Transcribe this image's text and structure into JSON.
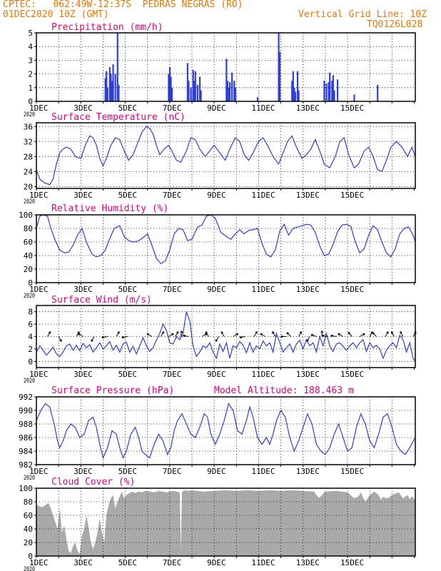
{
  "header": {
    "line1": "CPTEC:   062:49W-12:37S  PEDRAS NEGRAS (RO)",
    "line2_left": "01DEC2020 10Z (GMT)",
    "line2_right": "Vertical Grid Line: 10Z",
    "line3_right": "TQ0126L028"
  },
  "colors": {
    "header": "#e8780a",
    "title": "#e0007a",
    "line": "#2f3fd8",
    "bar": "#2f3fd8",
    "cloud": "#a9a9a9",
    "grid": "#000000",
    "wind_arrow": "#000000"
  },
  "x_tick_labels": [
    "1DEC",
    "3DEC",
    "5DEC",
    "7DEC",
    "9DEC",
    "11DEC",
    "13DEC",
    "15DEC"
  ],
  "x_first_tick_year_fragment": "2020",
  "chart_data": [
    {
      "type": "bar",
      "title": "Precipitation (mm/h)",
      "x_unit": "days since 01DEC2020 00Z",
      "ylim": [
        0,
        5
      ],
      "yticks": [
        0,
        1,
        2,
        3,
        4,
        5
      ],
      "x": [
        3.1,
        3.15,
        3.2,
        3.3,
        3.35,
        3.4,
        3.45,
        3.55,
        3.65,
        3.7,
        5.95,
        6.0,
        6.05,
        6.1,
        6.8,
        6.85,
        6.95,
        7.05,
        7.1,
        7.15,
        7.25,
        7.35,
        7.4,
        8.55,
        8.6,
        8.65,
        8.7,
        8.8,
        8.9,
        8.95,
        9.95,
        10.9,
        10.95,
        11.5,
        11.55,
        11.6,
        11.65,
        11.75,
        11.8,
        12.95,
        13.05,
        13.15,
        13.2,
        13.3,
        13.35,
        13.4,
        13.55,
        14.3,
        15.35
      ],
      "values": [
        1.7,
        2.2,
        1.0,
        2.5,
        2.0,
        1.5,
        2.7,
        2.0,
        5.0,
        1.2,
        2.0,
        2.5,
        1.8,
        1.0,
        2.8,
        1.5,
        1.0,
        2.3,
        1.5,
        2.2,
        1.2,
        1.8,
        0.8,
        3.1,
        1.5,
        1.0,
        1.4,
        2.1,
        1.5,
        1.0,
        0.3,
        5.0,
        3.6,
        1.5,
        2.2,
        1.0,
        0.7,
        2.2,
        0.8,
        1.5,
        1.3,
        1.4,
        2.1,
        1.5,
        1.9,
        0.8,
        1.6,
        0.5,
        1.2
      ]
    },
    {
      "type": "line",
      "title": "Surface Temperature (nC)",
      "x_unit": "days since 01DEC2020 00Z",
      "ylim": [
        19.5,
        37
      ],
      "yticks": [
        20,
        24,
        28,
        32,
        36
      ],
      "x": [
        0.0,
        0.15,
        0.35,
        0.6,
        0.75,
        0.9,
        1.05,
        1.2,
        1.35,
        1.55,
        1.75,
        2.0,
        2.2,
        2.4,
        2.55,
        2.7,
        2.85,
        3.0,
        3.15,
        3.35,
        3.55,
        3.75,
        3.95,
        4.15,
        4.35,
        4.55,
        4.75,
        4.95,
        5.1,
        5.25,
        5.4,
        5.55,
        5.75,
        5.95,
        6.1,
        6.3,
        6.5,
        6.75,
        6.95,
        7.15,
        7.35,
        7.6,
        7.8,
        8.0,
        8.25,
        8.5,
        8.7,
        8.95,
        9.15,
        9.35,
        9.55,
        9.75,
        10.0,
        10.2,
        10.4,
        10.65,
        10.9,
        11.1,
        11.3,
        11.5,
        11.7,
        11.95,
        12.15,
        12.35,
        12.55,
        12.75,
        12.95,
        13.2,
        13.45,
        13.65,
        13.85,
        14.05,
        14.3,
        14.5,
        14.75,
        14.95,
        15.15,
        15.35,
        15.55,
        15.75,
        15.95,
        16.2,
        16.45,
        16.7,
        16.9,
        17.05
      ],
      "values": [
        24.5,
        22.0,
        21.0,
        20.5,
        22.0,
        26.0,
        29.0,
        30.0,
        30.5,
        30.0,
        28.0,
        27.5,
        31.0,
        33.5,
        33.0,
        31.0,
        27.5,
        25.5,
        27.5,
        31.0,
        33.0,
        32.5,
        29.5,
        27.0,
        28.5,
        31.5,
        34.5,
        36.0,
        35.5,
        34.0,
        31.0,
        28.5,
        30.0,
        31.0,
        29.5,
        27.0,
        26.5,
        29.5,
        33.0,
        32.5,
        30.0,
        28.0,
        29.5,
        31.0,
        29.0,
        27.0,
        30.0,
        33.0,
        32.0,
        28.5,
        27.0,
        29.0,
        32.0,
        33.0,
        31.0,
        28.0,
        26.0,
        29.0,
        32.0,
        33.5,
        30.5,
        27.5,
        28.5,
        30.0,
        32.5,
        29.5,
        26.0,
        25.0,
        28.0,
        32.0,
        33.0,
        28.5,
        25.0,
        26.0,
        29.5,
        30.5,
        28.0,
        24.5,
        24.0,
        27.0,
        30.5,
        32.0,
        30.5,
        28.0,
        30.5,
        28.0
      ]
    },
    {
      "type": "line",
      "title": "Relative Humidity (%)",
      "x_unit": "days since 01DEC2020 00Z",
      "ylim": [
        0,
        100
      ],
      "yticks": [
        0,
        20,
        40,
        60,
        80,
        100
      ],
      "x": [
        0.0,
        0.15,
        0.3,
        0.5,
        0.65,
        0.85,
        1.05,
        1.25,
        1.45,
        1.65,
        1.85,
        2.05,
        2.25,
        2.5,
        2.7,
        2.9,
        3.1,
        3.3,
        3.5,
        3.75,
        3.95,
        4.15,
        4.35,
        4.55,
        4.75,
        5.0,
        5.2,
        5.4,
        5.6,
        5.8,
        6.0,
        6.2,
        6.4,
        6.6,
        6.8,
        7.0,
        7.25,
        7.45,
        7.65,
        7.85,
        8.05,
        8.3,
        8.55,
        8.75,
        8.95,
        9.15,
        9.35,
        9.55,
        9.75,
        9.95,
        10.15,
        10.35,
        10.55,
        10.75,
        10.95,
        11.15,
        11.35,
        11.55,
        11.75,
        11.95,
        12.15,
        12.35,
        12.55,
        12.75,
        12.95,
        13.15,
        13.35,
        13.55,
        13.75,
        13.95,
        14.15,
        14.35,
        14.55,
        14.75,
        14.95,
        15.15,
        15.35,
        15.55,
        15.75,
        15.95,
        16.15,
        16.35,
        16.55,
        16.75,
        16.95,
        17.05
      ],
      "values": [
        80,
        98,
        100,
        98,
        80,
        62,
        48,
        44,
        45,
        55,
        70,
        80,
        60,
        42,
        38,
        40,
        48,
        65,
        80,
        84,
        68,
        62,
        60,
        61,
        65,
        72,
        55,
        36,
        28,
        32,
        48,
        72,
        80,
        78,
        62,
        64,
        82,
        85,
        98,
        100,
        95,
        74,
        68,
        64,
        72,
        78,
        72,
        77,
        78,
        80,
        58,
        42,
        38,
        48,
        76,
        86,
        70,
        80,
        82,
        84,
        86,
        85,
        74,
        54,
        40,
        42,
        56,
        75,
        85,
        86,
        83,
        60,
        44,
        50,
        70,
        84,
        78,
        60,
        44,
        38,
        50,
        72,
        80,
        82,
        70,
        60
      ]
    },
    {
      "type": "line",
      "title": "Surface Wind (m/s)",
      "x_unit": "days since 01DEC2020 00Z",
      "ylim": [
        -1,
        9
      ],
      "yticks": [
        0,
        2,
        4,
        6,
        8
      ],
      "x": [
        0.0,
        0.15,
        0.3,
        0.45,
        0.6,
        0.75,
        0.9,
        1.05,
        1.2,
        1.35,
        1.5,
        1.65,
        1.8,
        1.95,
        2.1,
        2.25,
        2.4,
        2.55,
        2.7,
        2.85,
        3.0,
        3.15,
        3.3,
        3.45,
        3.6,
        3.75,
        3.9,
        4.05,
        4.2,
        4.35,
        4.5,
        4.65,
        4.8,
        4.95,
        5.1,
        5.25,
        5.4,
        5.55,
        5.7,
        5.85,
        6.0,
        6.15,
        6.3,
        6.45,
        6.6,
        6.75,
        6.9,
        7.05,
        7.2,
        7.35,
        7.5,
        7.65,
        7.8,
        7.95,
        8.1,
        8.25,
        8.4,
        8.55,
        8.7,
        8.85,
        9.0,
        9.15,
        9.3,
        9.45,
        9.6,
        9.75,
        9.9,
        10.05,
        10.2,
        10.35,
        10.5,
        10.65,
        10.8,
        10.95,
        11.1,
        11.25,
        11.4,
        11.55,
        11.7,
        11.85,
        12.0,
        12.15,
        12.3,
        12.45,
        12.6,
        12.75,
        12.9,
        13.05,
        13.2,
        13.35,
        13.5,
        13.65,
        13.8,
        13.95,
        14.1,
        14.25,
        14.4,
        14.55,
        14.7,
        14.85,
        15.0,
        15.15,
        15.3,
        15.45,
        15.6,
        15.75,
        15.9,
        16.05,
        16.2,
        16.35,
        16.5,
        16.65,
        16.8,
        16.95,
        17.05
      ],
      "values": [
        1.5,
        2.5,
        1.8,
        1.0,
        1.6,
        2.3,
        1.2,
        0.8,
        1.5,
        2.5,
        2.8,
        1.8,
        2.6,
        1.7,
        2.9,
        2.2,
        2.7,
        1.5,
        2.2,
        3.0,
        2.0,
        2.5,
        3.2,
        1.8,
        2.6,
        1.5,
        2.8,
        3.1,
        1.5,
        2.4,
        1.2,
        2.5,
        3.8,
        2.5,
        1.6,
        2.2,
        3.4,
        4.5,
        6.0,
        5.0,
        3.0,
        2.8,
        4.0,
        3.5,
        4.5,
        8.0,
        6.5,
        2.5,
        0.8,
        1.5,
        2.5,
        2.2,
        3.0,
        1.5,
        0.5,
        2.8,
        1.6,
        3.0,
        0.5,
        2.5,
        2.2,
        3.2,
        2.6,
        1.4,
        3.0,
        1.5,
        2.5,
        2.0,
        3.3,
        2.5,
        3.0,
        1.5,
        4.5,
        3.0,
        1.5,
        2.2,
        2.8,
        1.5,
        2.8,
        3.4,
        2.0,
        3.5,
        2.5,
        3.0,
        1.5,
        4.0,
        2.5,
        4.5,
        2.5,
        1.6,
        2.8,
        3.0,
        2.4,
        1.8,
        2.5,
        3.0,
        2.2,
        3.0,
        3.5,
        1.6,
        3.0,
        2.2,
        2.6,
        2.0,
        0.5,
        1.8,
        2.5,
        3.0,
        2.2,
        4.2,
        3.5,
        1.5,
        3.0,
        0.5,
        0.0
      ]
    },
    {
      "type": "line",
      "title": "Surface Pressure (hPa)",
      "annotation": "Model Altitude: 188.463  m",
      "x_unit": "days since 01DEC2020 00Z",
      "ylim": [
        982,
        992
      ],
      "yticks": [
        982,
        984,
        986,
        988,
        990,
        992
      ],
      "x": [
        0.0,
        0.2,
        0.4,
        0.6,
        0.8,
        0.95,
        1.05,
        1.2,
        1.35,
        1.55,
        1.75,
        1.95,
        2.15,
        2.35,
        2.55,
        2.7,
        2.85,
        3.0,
        3.2,
        3.4,
        3.6,
        3.75,
        3.9,
        4.05,
        4.25,
        4.45,
        4.6,
        4.75,
        4.9,
        5.1,
        5.3,
        5.5,
        5.7,
        5.9,
        6.05,
        6.2,
        6.35,
        6.55,
        6.75,
        6.95,
        7.15,
        7.35,
        7.55,
        7.7,
        7.85,
        8.05,
        8.25,
        8.45,
        8.65,
        8.85,
        9.05,
        9.25,
        9.45,
        9.6,
        9.75,
        9.95,
        10.15,
        10.35,
        10.5,
        10.65,
        10.8,
        11.0,
        11.2,
        11.4,
        11.6,
        11.8,
        12.0,
        12.2,
        12.4,
        12.6,
        12.8,
        13.0,
        13.2,
        13.4,
        13.6,
        13.8,
        14.0,
        14.2,
        14.4,
        14.6,
        14.8,
        15.0,
        15.2,
        15.4,
        15.6,
        15.8,
        16.0,
        16.2,
        16.4,
        16.6,
        16.8,
        17.05
      ],
      "values": [
        988.5,
        990.0,
        991.0,
        990.5,
        988.0,
        985.5,
        984.5,
        985.5,
        987.0,
        988.0,
        987.5,
        986.0,
        986.5,
        988.5,
        989.0,
        987.5,
        985.0,
        983.0,
        984.5,
        987.0,
        986.5,
        984.5,
        983.0,
        984.0,
        986.5,
        987.5,
        986.0,
        984.0,
        983.5,
        983.0,
        985.0,
        986.5,
        985.5,
        983.5,
        984.5,
        987.0,
        988.5,
        989.5,
        988.0,
        986.5,
        986.0,
        987.5,
        989.5,
        989.0,
        986.5,
        985.0,
        986.5,
        988.5,
        991.0,
        990.0,
        987.0,
        986.5,
        988.5,
        990.5,
        989.0,
        986.0,
        985.0,
        986.0,
        985.0,
        986.5,
        988.5,
        990.0,
        989.0,
        986.0,
        984.0,
        985.5,
        987.5,
        989.5,
        988.0,
        985.0,
        984.0,
        983.5,
        984.5,
        986.5,
        988.0,
        986.0,
        984.0,
        984.5,
        987.5,
        989.5,
        988.0,
        985.5,
        984.5,
        986.5,
        989.0,
        989.5,
        987.5,
        985.0,
        984.0,
        983.5,
        984.5,
        986.0
      ]
    },
    {
      "type": "area",
      "title": "Cloud Cover (%)",
      "x_unit": "days since 01DEC2020 00Z",
      "ylim": [
        0,
        100
      ],
      "yticks": [
        0,
        20,
        40,
        60,
        80,
        100
      ],
      "x": [
        0.0,
        0.1,
        0.25,
        0.45,
        0.55,
        0.65,
        0.75,
        0.85,
        0.95,
        1.05,
        1.15,
        1.25,
        1.35,
        1.45,
        1.55,
        1.65,
        1.75,
        1.85,
        1.95,
        2.05,
        2.15,
        2.25,
        2.35,
        2.45,
        2.55,
        2.65,
        2.75,
        2.85,
        2.95,
        3.05,
        3.15,
        3.25,
        3.35,
        3.45,
        3.55,
        3.65,
        3.75,
        3.85,
        3.95,
        4.05,
        4.15,
        4.3,
        4.45,
        4.6,
        4.75,
        4.9,
        5.1,
        5.3,
        5.5,
        5.7,
        5.9,
        6.1,
        6.3,
        6.45,
        6.5,
        6.55,
        6.7,
        6.85,
        7.0,
        7.5,
        8.0,
        8.5,
        9.0,
        9.5,
        10.0,
        10.5,
        11.0,
        11.5,
        12.0,
        12.5,
        12.6,
        12.7,
        12.8,
        12.9,
        13.0,
        13.5,
        14.0,
        14.3,
        14.5,
        14.6,
        14.7,
        14.8,
        15.0,
        15.2,
        15.4,
        15.5,
        15.6,
        15.8,
        16.0,
        16.3,
        16.5,
        16.7,
        16.8,
        16.9,
        17.05
      ],
      "values": [
        75,
        74,
        72,
        76,
        78,
        70,
        60,
        50,
        40,
        70,
        35,
        45,
        25,
        8,
        4,
        15,
        20,
        8,
        3,
        30,
        40,
        60,
        42,
        20,
        10,
        20,
        35,
        55,
        35,
        20,
        60,
        75,
        85,
        90,
        70,
        80,
        88,
        95,
        85,
        90,
        92,
        95,
        93,
        95,
        94,
        96,
        95,
        94,
        96,
        95,
        94,
        96,
        95,
        94,
        5,
        95,
        97,
        96,
        97,
        95,
        96,
        97,
        96,
        97,
        96,
        97,
        96,
        97,
        96,
        95,
        90,
        86,
        88,
        92,
        95,
        96,
        94,
        85,
        88,
        94,
        86,
        80,
        90,
        95,
        90,
        83,
        87,
        85,
        90,
        94,
        85,
        90,
        84,
        88,
        82
      ]
    }
  ],
  "wind_arrows": {
    "y_value": 4,
    "x": [
      0.5,
      1.0,
      1.8,
      2.1,
      2.6,
      3.2,
      3.6,
      4.1,
      5.2,
      5.6,
      5.95,
      6.25,
      6.5,
      6.85,
      7.45,
      7.75,
      8.2,
      8.45,
      8.85,
      9.4,
      9.8,
      10.3,
      10.75,
      11.25,
      11.45,
      11.8,
      12.3,
      12.6,
      12.85,
      13.1,
      13.5,
      13.8,
      14.2,
      14.55,
      15.0,
      15.3,
      15.7,
      16.1,
      16.5,
      16.95
    ],
    "angle_deg": [
      -60,
      60,
      -60,
      -150,
      120,
      170,
      -60,
      170,
      -150,
      -60,
      -30,
      -60,
      -80,
      190,
      -30,
      240,
      120,
      240,
      -30,
      170,
      -60,
      210,
      240,
      180,
      225,
      -60,
      120,
      200,
      -90,
      190,
      190,
      -150,
      230,
      -30,
      -60,
      225,
      -60,
      240,
      240,
      -60
    ]
  }
}
